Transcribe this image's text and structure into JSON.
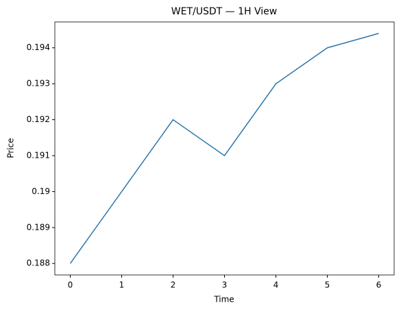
{
  "chart_data": {
    "type": "line",
    "title": "WET/USDT — 1H View",
    "x_label": "Time",
    "y_label": "Price",
    "x": [
      0,
      1,
      2,
      3,
      4,
      5,
      6
    ],
    "series": [
      {
        "name": "WET/USDT",
        "color": "#2a77ac",
        "values": [
          0.188,
          0.19,
          0.192,
          0.191,
          0.193,
          0.194,
          0.1944
        ]
      }
    ],
    "xlim": [
      -0.3,
      6.3
    ],
    "xticks": [
      0,
      1,
      2,
      3,
      4,
      5,
      6
    ],
    "ylim": [
      0.18768,
      0.19472
    ],
    "yticks": [
      0.188,
      0.189,
      0.19,
      0.191,
      0.192,
      0.193,
      0.194
    ],
    "grid": false
  }
}
